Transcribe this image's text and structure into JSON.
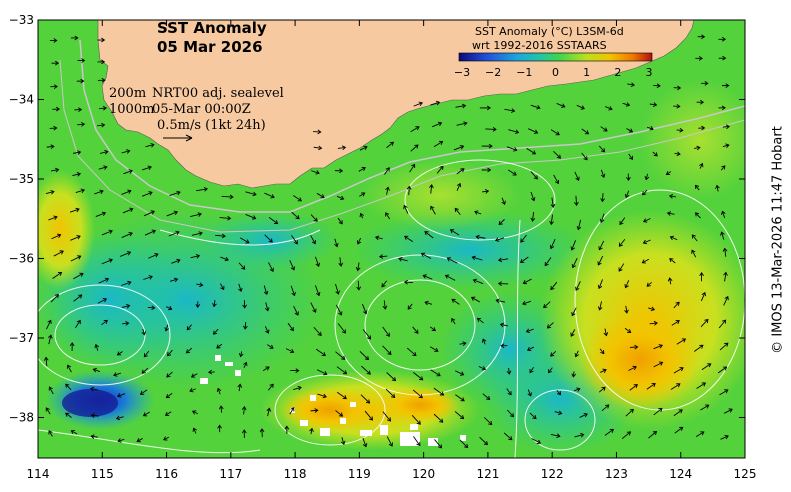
{
  "title": {
    "line1": "SST Anomaly",
    "line2": "05 Mar 2026"
  },
  "legend": {
    "title1": "SST Anomaly (°C) L3SM-6d",
    "title2": "wrt 1992-2016 SSTAARS",
    "ticks": [
      "−3",
      "−2",
      "−1",
      "0",
      "1",
      "2",
      "3"
    ],
    "colors": [
      "#0a0a7a",
      "#1f4fd8",
      "#1aa6e0",
      "#1fc8a0",
      "#3fd64a",
      "#b8e020",
      "#f2c400",
      "#f07800",
      "#b01010"
    ]
  },
  "annotations": {
    "depth1": "200m",
    "depth2": "1000m",
    "source": "NRT00 adj. sealevel",
    "time": "05-Mar 00:00Z",
    "scale": "0.5m/s (1kt 24h)"
  },
  "credit": "© IMOS 13-Mar-2026 11:47 Hobart",
  "axes": {
    "x_ticks": [
      "114",
      "115",
      "116",
      "117",
      "118",
      "119",
      "120",
      "121",
      "122",
      "123",
      "124",
      "125"
    ],
    "y_ticks": [
      "−33",
      "−34",
      "−35",
      "−36",
      "−37",
      "−38"
    ]
  },
  "colors": {
    "land": "#f6c9a0",
    "ocean_base": "#54d23c",
    "contour": "#ffffff"
  }
}
